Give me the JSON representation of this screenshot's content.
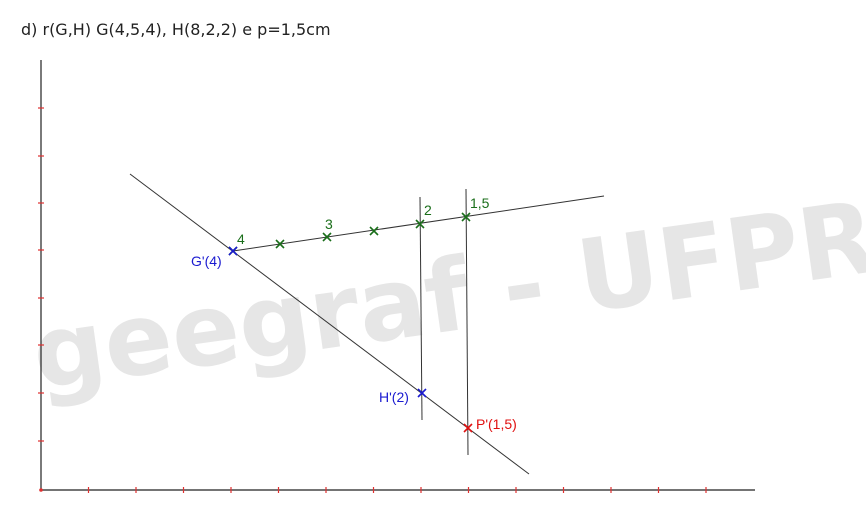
{
  "title": "d) r(G,H)  G(4,5,4), H(8,2,2) e p=1,5cm",
  "watermark": "geegraf - UFPR",
  "colors": {
    "axis": "#222222",
    "tick": "#e03030",
    "green": "#1a6e1a",
    "blue": "#1a1ad0",
    "red": "#e01010",
    "line": "#333333",
    "watermark": "#e6e6e6"
  },
  "labels": {
    "g_prime": "G'(4)",
    "h_prime": "H'(2)",
    "p_prime": "P'(1,5)",
    "scale_4": "4",
    "scale_3": "3",
    "scale_2": "2",
    "scale_15": "1,5"
  }
}
